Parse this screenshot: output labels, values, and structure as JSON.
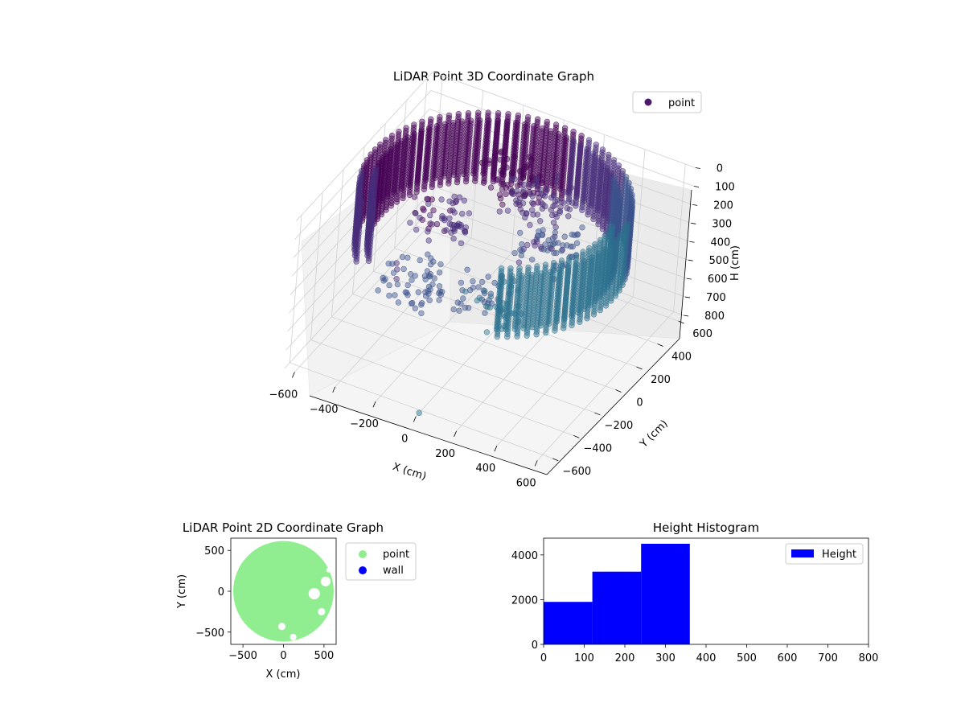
{
  "chart_data": [
    {
      "type": "scatter3d",
      "title": "LiDAR Point 3D Coordinate Graph",
      "xlabel": "X (cm)",
      "ylabel": "Y (cm)",
      "zlabel": "H (cm)",
      "xlim": [
        -650,
        650
      ],
      "ylim": [
        -650,
        650
      ],
      "zlim": [
        800,
        0
      ],
      "x_ticks": [
        "−600",
        "−400",
        "−200",
        "0",
        "200",
        "400",
        "600"
      ],
      "y_ticks": [
        "−600",
        "−400",
        "−200",
        "0",
        "200",
        "400",
        "600"
      ],
      "z_ticks": [
        "0",
        "100",
        "200",
        "300",
        "400",
        "500",
        "600",
        "700",
        "800"
      ],
      "legend": {
        "placement": "top-right",
        "entries": [
          {
            "label": "point",
            "color": "#4b1a6e"
          }
        ]
      },
      "colormap": [
        "#440154",
        "#472d7b",
        "#3b528b",
        "#2c728e"
      ],
      "series": [
        {
          "name": "point",
          "description_ring": {
            "radius_cm": 600,
            "height_range_cm": [
              0,
              330
            ],
            "arc_start_deg": 300,
            "arc_end_deg": 580
          },
          "clusters": [
            {
              "x": -120,
              "y": 420,
              "h": 250
            },
            {
              "x": 50,
              "y": 380,
              "h": 230
            },
            {
              "x": 200,
              "y": 150,
              "h": 300
            },
            {
              "x": -300,
              "y": 100,
              "h": 320
            },
            {
              "x": 150,
              "y": -300,
              "h": 330
            },
            {
              "x": -200,
              "y": -350,
              "h": 340
            }
          ],
          "outlier": {
            "x": 0,
            "y": -620,
            "h": 800
          }
        }
      ],
      "grid": true
    },
    {
      "type": "scatter",
      "title": "LiDAR Point 2D Coordinate Graph",
      "xlabel": "X (cm)",
      "ylabel": "Y (cm)",
      "xlim": [
        -650,
        650
      ],
      "ylim": [
        -650,
        650
      ],
      "x_ticks": [
        "−500",
        "0",
        "500"
      ],
      "y_ticks": [
        "500",
        "0",
        "−500"
      ],
      "legend": {
        "placement": "outside-right",
        "entries": [
          {
            "label": "point",
            "color": "#90ee90"
          },
          {
            "label": "wall",
            "color": "#0000ff"
          }
        ]
      },
      "series": [
        {
          "name": "point",
          "color": "#90ee90",
          "shape": "disc",
          "radius_cm": 620
        },
        {
          "name": "wall",
          "color": "#0000ff",
          "values": []
        }
      ]
    },
    {
      "type": "bar",
      "title": "Height Histogram",
      "xlabel": "",
      "ylabel": "",
      "xlim": [
        0,
        800
      ],
      "ylim": [
        0,
        4750
      ],
      "x_ticks": [
        "0",
        "100",
        "200",
        "300",
        "400",
        "500",
        "600",
        "700",
        "800"
      ],
      "y_ticks": [
        "0",
        "2000",
        "4000"
      ],
      "legend": {
        "placement": "top-right",
        "entries": [
          {
            "label": "Height",
            "color": "#0000ff"
          }
        ]
      },
      "series": [
        {
          "name": "Height",
          "color": "#0000ff",
          "bins": [
            {
              "start": 0,
              "end": 120,
              "count": 1900
            },
            {
              "start": 120,
              "end": 240,
              "count": 3250
            },
            {
              "start": 240,
              "end": 360,
              "count": 4500
            }
          ]
        }
      ]
    }
  ]
}
